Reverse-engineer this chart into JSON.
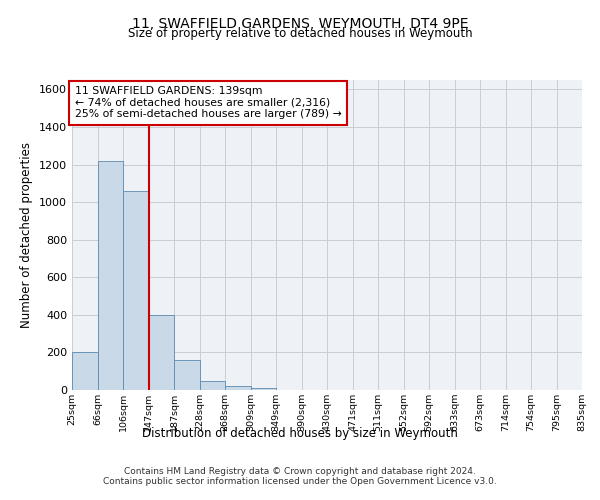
{
  "title": "11, SWAFFIELD GARDENS, WEYMOUTH, DT4 9PE",
  "subtitle": "Size of property relative to detached houses in Weymouth",
  "xlabel": "Distribution of detached houses by size in Weymouth",
  "ylabel": "Number of detached properties",
  "bin_labels": [
    "25sqm",
    "66sqm",
    "106sqm",
    "147sqm",
    "187sqm",
    "228sqm",
    "268sqm",
    "309sqm",
    "349sqm",
    "390sqm",
    "430sqm",
    "471sqm",
    "511sqm",
    "552sqm",
    "592sqm",
    "633sqm",
    "673sqm",
    "714sqm",
    "754sqm",
    "795sqm",
    "835sqm"
  ],
  "bar_heights": [
    200,
    1220,
    1060,
    400,
    160,
    50,
    20,
    10,
    0,
    0,
    0,
    0,
    0,
    0,
    0,
    0,
    0,
    0,
    0,
    0
  ],
  "bar_color": "#c9d9e8",
  "bar_edge_color": "#5a8ab0",
  "grid_color": "#c8cdd4",
  "background_color": "#eef2f7",
  "red_line_x": 3,
  "annotation_line1": "11 SWAFFIELD GARDENS: 139sqm",
  "annotation_line2": "← 74% of detached houses are smaller (2,316)",
  "annotation_line3": "25% of semi-detached houses are larger (789) →",
  "annotation_box_color": "#ffffff",
  "annotation_border_color": "#cc0000",
  "red_line_color": "#cc0000",
  "ylim": [
    0,
    1650
  ],
  "yticks": [
    0,
    200,
    400,
    600,
    800,
    1000,
    1200,
    1400,
    1600
  ],
  "footer1": "Contains HM Land Registry data © Crown copyright and database right 2024.",
  "footer2": "Contains public sector information licensed under the Open Government Licence v3.0."
}
